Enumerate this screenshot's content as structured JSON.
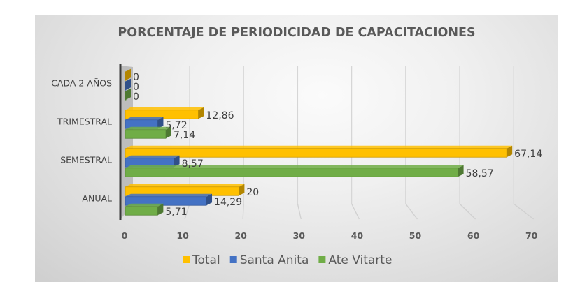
{
  "chart_data": {
    "type": "bar",
    "orientation": "horizontal",
    "style": "3d-clustered",
    "title": "PORCENTAJE DE PERIODICIDAD DE CAPACITACIONES",
    "xlabel": "",
    "ylabel": "",
    "categories": [
      "ANUAL",
      "SEMESTRAL",
      "TRIMESTRAL",
      "CADA 2 AÑOS"
    ],
    "series": [
      {
        "name": "Total",
        "color": "#FFC000",
        "values": [
          20,
          67.14,
          12.86,
          0
        ],
        "labels": [
          "20",
          "67,14",
          "12,86",
          "0"
        ]
      },
      {
        "name": "Santa Anita",
        "color": "#4472C4",
        "values": [
          14.29,
          8.57,
          5.72,
          0
        ],
        "labels": [
          "14,29",
          "8,57",
          "5,72",
          "0"
        ]
      },
      {
        "name": "Ate Vitarte",
        "color": "#70AD47",
        "values": [
          5.71,
          58.57,
          7.14,
          0
        ],
        "labels": [
          "5,71",
          "58,57",
          "7,14",
          "0"
        ]
      }
    ],
    "xlim": [
      0,
      70
    ],
    "xticks": [
      0,
      10,
      20,
      30,
      40,
      50,
      60,
      70
    ],
    "xtick_labels": [
      "0",
      "10",
      "20",
      "30",
      "40",
      "50",
      "60",
      "70"
    ],
    "grid": true,
    "legend_position": "bottom"
  }
}
